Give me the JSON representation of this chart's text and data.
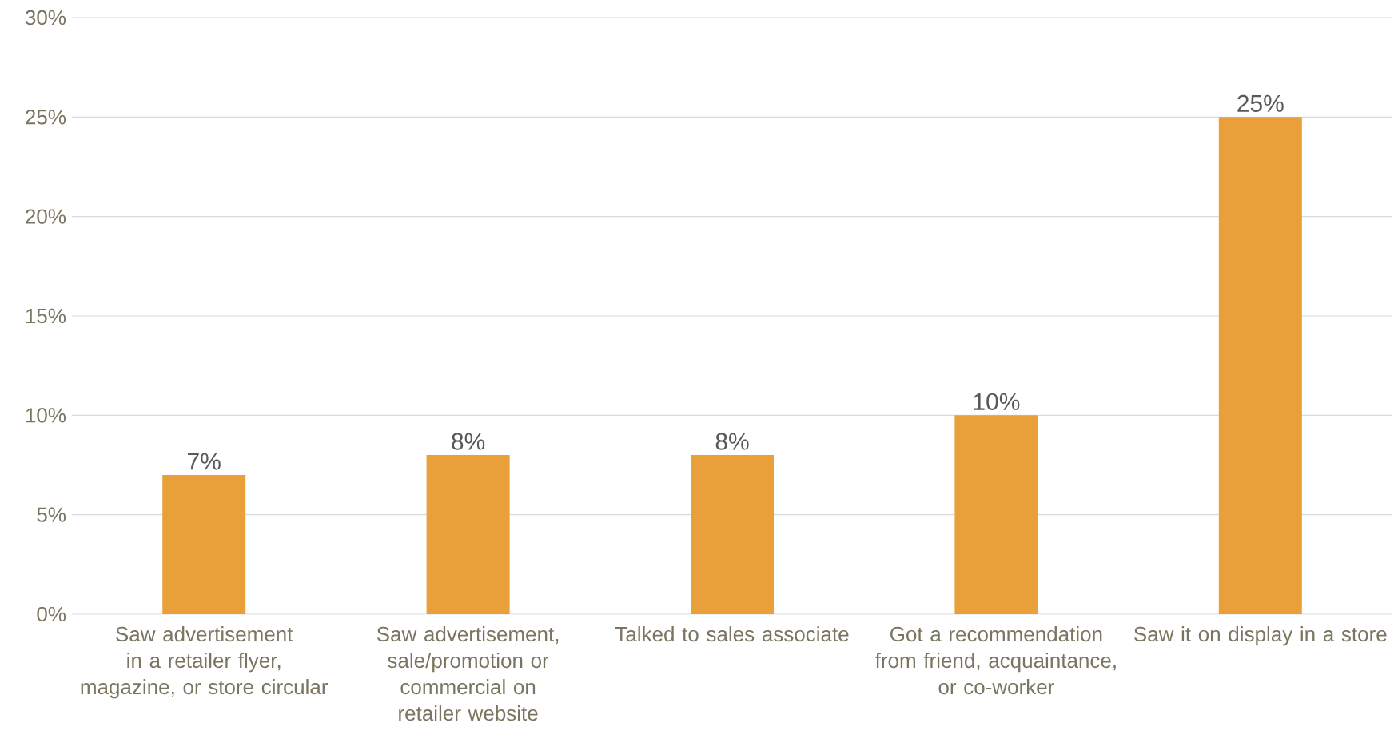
{
  "chart_data": {
    "type": "bar",
    "categories": [
      "Saw advertisement in a retailer flyer, magazine, or store circular",
      "Saw advertisement, sale/promotion or commercial on retailer website",
      "Talked to sales associate",
      "Got a recommendation from friend, acquaintance, or co-worker",
      "Saw it on display in a store"
    ],
    "values": [
      7,
      8,
      8,
      10,
      25
    ],
    "value_labels": [
      "7%",
      "8%",
      "8%",
      "10%",
      "25%"
    ],
    "color": "#e9a03b",
    "ylim": [
      0,
      30
    ],
    "yticks": [
      {
        "value": 0,
        "label": "0%"
      },
      {
        "value": 5,
        "label": "5%"
      },
      {
        "value": 10,
        "label": "10%"
      },
      {
        "value": 15,
        "label": "15%"
      },
      {
        "value": 20,
        "label": "20%"
      },
      {
        "value": 25,
        "label": "25%"
      },
      {
        "value": 30,
        "label": "30%"
      }
    ],
    "grid": "y"
  }
}
